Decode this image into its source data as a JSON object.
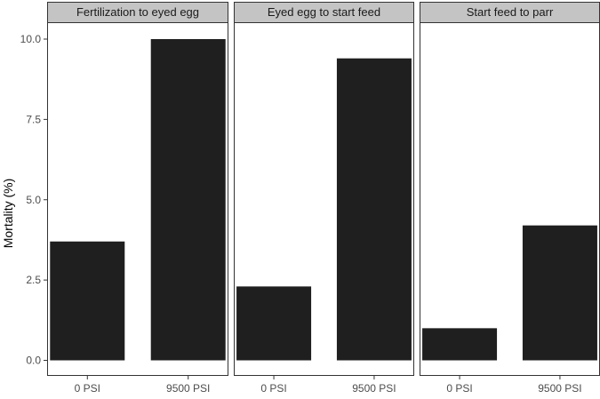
{
  "chart_data": {
    "type": "bar",
    "ylabel": "Mortality (%)",
    "ylim": [
      0,
      10.5
    ],
    "yticks": [
      0.0,
      2.5,
      5.0,
      7.5,
      10.0
    ],
    "ytick_labels": [
      "0.0",
      "2.5",
      "5.0",
      "7.5",
      "10.0"
    ],
    "categories": [
      "0 PSI",
      "9500 PSI"
    ],
    "grid": false,
    "bar_color": "#1f1f1f",
    "strip_color": "#c4c4c4",
    "panels": [
      {
        "title": "Fertilization to eyed egg",
        "values": [
          3.7,
          10.0
        ]
      },
      {
        "title": "Eyed egg to start feed",
        "values": [
          2.3,
          9.4
        ]
      },
      {
        "title": "Start feed to parr",
        "values": [
          1.0,
          4.2
        ]
      }
    ]
  }
}
